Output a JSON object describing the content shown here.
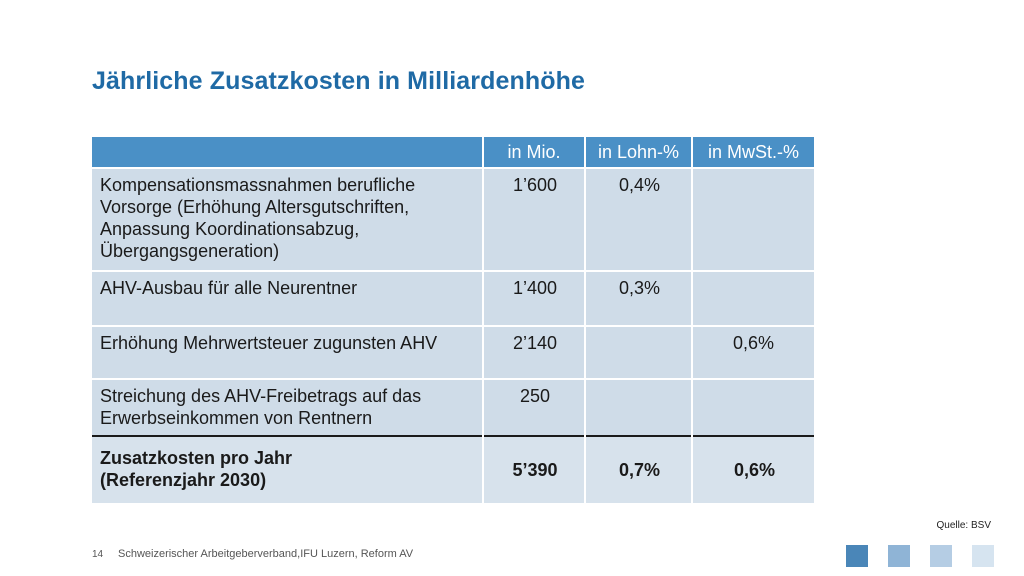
{
  "title": "Jährliche Zusatzkosten in Milliardenhöhe",
  "table": {
    "headers": [
      "",
      "in Mio.",
      "in Lohn-%",
      "in MwSt.-%"
    ],
    "rows": [
      {
        "label": "Kompensationsmassnahmen berufliche Vorsorge (Erhöhung Altersgutschriften, Anpassung Koordinationsabzug, Übergangsgeneration)",
        "mio": "1’600",
        "lohn": "0,4%",
        "mwst": ""
      },
      {
        "label": "AHV-Ausbau für alle Neurentner",
        "mio": "1’400",
        "lohn": "0,3%",
        "mwst": ""
      },
      {
        "label": "Erhöhung Mehrwertsteuer zugunsten AHV",
        "mio": "2’140",
        "lohn": "",
        "mwst": "0,6%"
      },
      {
        "label": "Streichung des AHV-Freibetrags auf das Erwerbseinkommen von Rentnern",
        "mio": "250",
        "lohn": "",
        "mwst": ""
      }
    ],
    "total": {
      "label_line1": "Zusatzkosten pro Jahr",
      "label_line2": "(Referenzjahr 2030)",
      "mio": "5’390",
      "lohn": "0,7%",
      "mwst": "0,6%"
    }
  },
  "source": "Quelle: BSV",
  "footer": {
    "page_number": "14",
    "text": "Schweizerischer Arbeitgeberverband,IFU Luzern, Reform AV"
  },
  "colors": {
    "title": "#1f6aa5",
    "header_bg": "#4a90c6",
    "cell_bg": "#cfdce8",
    "squares": [
      "#4a86b8",
      "#8fb4d6",
      "#b5cde4",
      "#d6e4f0"
    ]
  }
}
